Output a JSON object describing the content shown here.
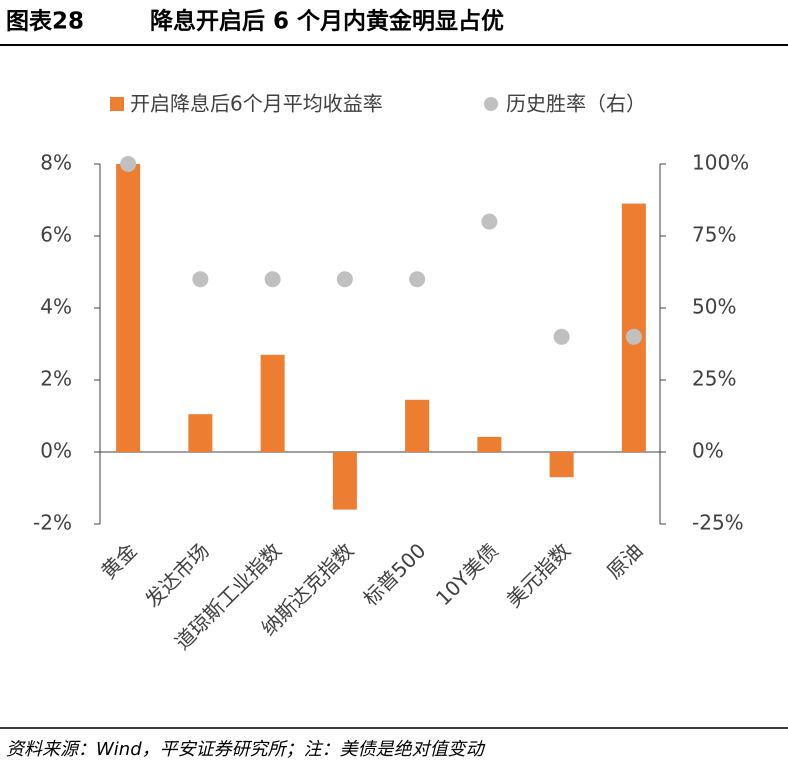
{
  "chart_data": {
    "type": "bar_dot",
    "figure_label": "图表28",
    "title": "降息开启后 6 个月内黄金明显占优",
    "source": "资料来源：Wind，平安证券研究所；注：美债是绝对值变动",
    "categories": [
      "黄金",
      "发达市场",
      "道琼斯工业指数",
      "纳斯达克指数",
      "标普500",
      "10Y美债",
      "美元指数",
      "原油"
    ],
    "series": [
      {
        "name": "开启降息后6个月平均收益率",
        "color": "#ed7d31",
        "values": [
          8.0,
          1.05,
          2.7,
          -1.6,
          1.45,
          0.42,
          -0.7,
          6.9
        ]
      },
      {
        "name": "历史胜率（右）",
        "color": "#c0c0c0",
        "axis": "y2",
        "values": [
          100,
          60,
          60,
          60,
          60,
          80,
          40,
          40
        ]
      }
    ],
    "ylim": [
      -2,
      8
    ],
    "yticks": [
      {
        "value": -2,
        "label": "-2%"
      },
      {
        "value": 0,
        "label": "0%"
      },
      {
        "value": 2,
        "label": "2%"
      },
      {
        "value": 4,
        "label": "4%"
      },
      {
        "value": 6,
        "label": "6%"
      },
      {
        "value": 8,
        "label": "8%"
      }
    ],
    "y2lim": [
      -25,
      100
    ],
    "y2ticks": [
      {
        "value": -25,
        "label": "-25%"
      },
      {
        "value": 0,
        "label": "0%"
      },
      {
        "value": 25,
        "label": "25%"
      },
      {
        "value": 50,
        "label": "50%"
      },
      {
        "value": 75,
        "label": "75%"
      },
      {
        "value": 100,
        "label": "100%"
      }
    ],
    "grid": false
  }
}
